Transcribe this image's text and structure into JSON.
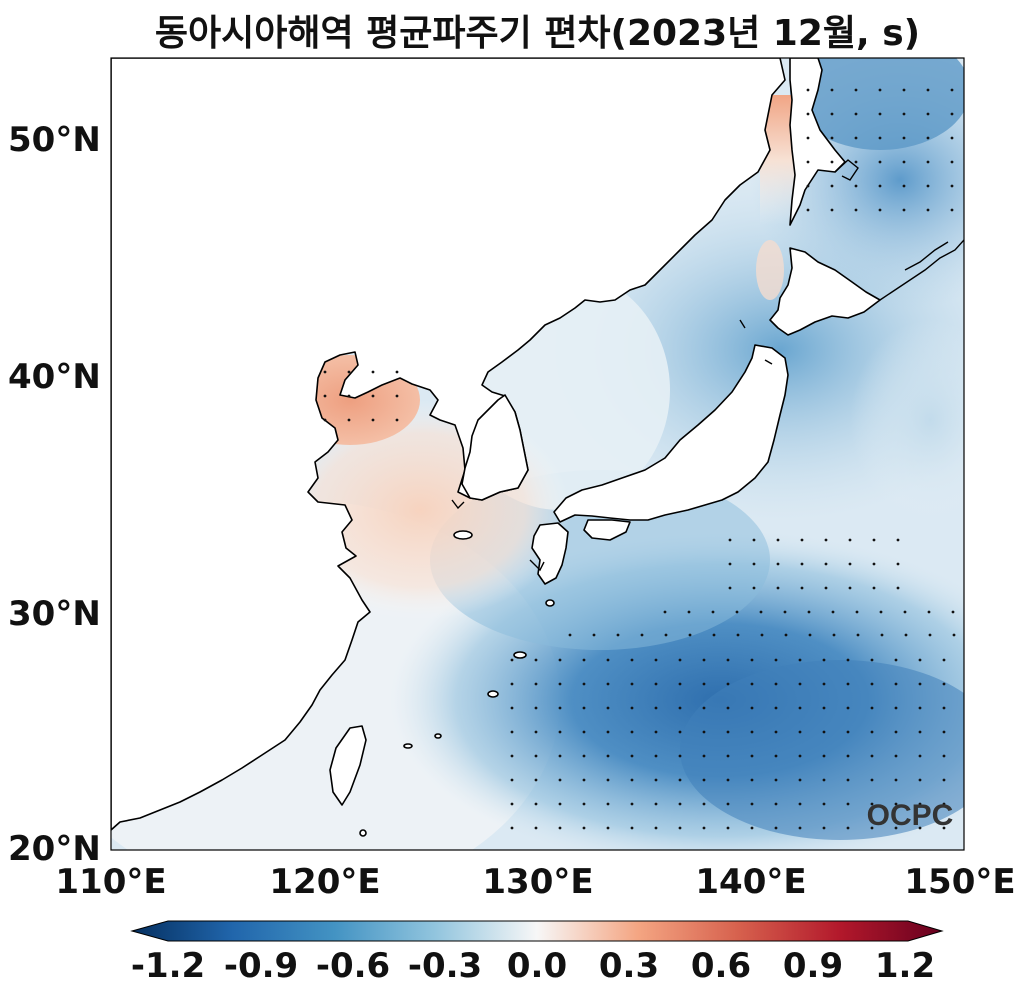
{
  "title": "동아시아해역 평균파주기 편차(2023년 12월, s)",
  "lat_labels": [
    "50°N",
    "40°N",
    "30°N",
    "20°N"
  ],
  "lon_labels": [
    "110°E",
    "120°E",
    "130°E",
    "140°E",
    "150°E"
  ],
  "colorbar": {
    "ticks": [
      "-1.2",
      "-0.9",
      "-0.6",
      "-0.3",
      "0.0",
      "0.3",
      "0.6",
      "0.9",
      "1.2"
    ],
    "range": [
      -1.2,
      1.2
    ],
    "colors": [
      "#053061",
      "#2166ac",
      "#4393c3",
      "#92c5de",
      "#f7f7f7",
      "#f4a582",
      "#d6604d",
      "#b2182b",
      "#67001f"
    ]
  },
  "watermark": "OCPC",
  "map": {
    "extent_lon": [
      110,
      150
    ],
    "extent_lat": [
      20,
      53.5
    ],
    "land_color": "#ffffff",
    "coastline_color": "#000000"
  }
}
